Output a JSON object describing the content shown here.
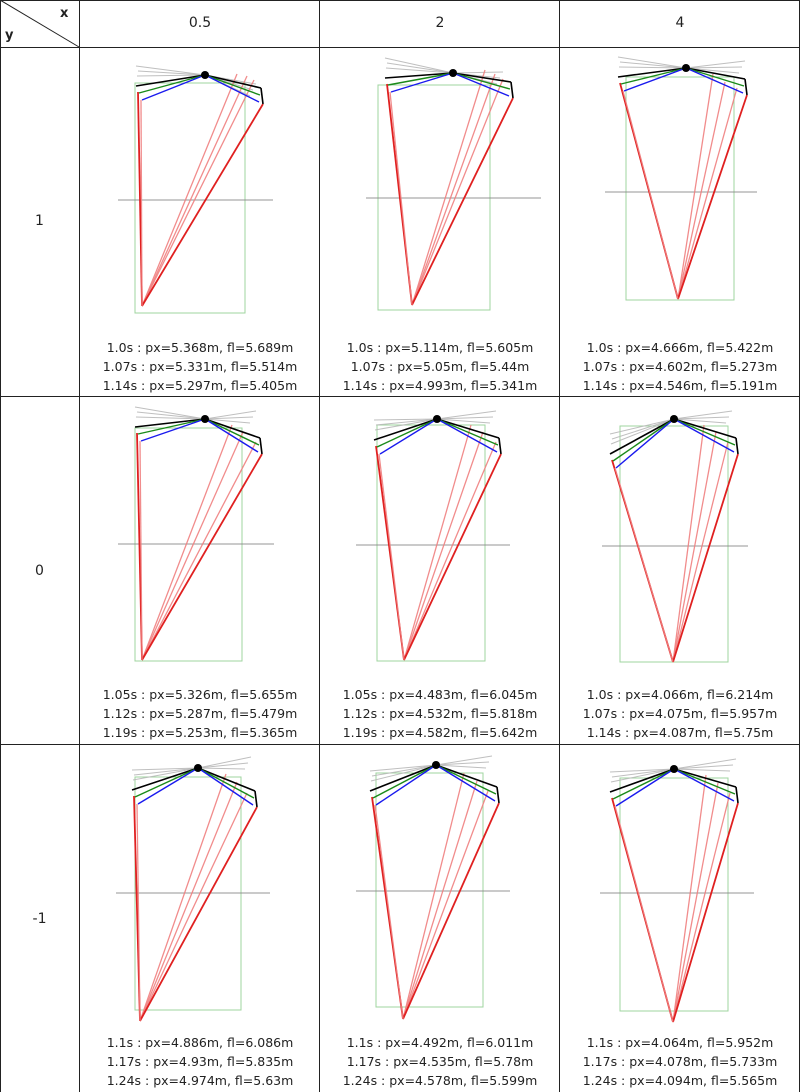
{
  "header": {
    "x_label": "x",
    "y_label": "y"
  },
  "columns": [
    "0.5",
    "2",
    "4"
  ],
  "rows": [
    {
      "label": "1",
      "cells": [
        {
          "lines": [
            "1.0s : px=5.368m, fl=5.689m",
            "1.07s : px=5.331m, fl=5.514m",
            "1.14s : px=5.297m, fl=5.405m"
          ]
        },
        {
          "lines": [
            "1.0s : px=5.114m, fl=5.605m",
            "1.07s : px=5.05m, fl=5.44m",
            "1.14s : px=4.993m, fl=5.341m"
          ]
        },
        {
          "lines": [
            "1.0s : px=4.666m, fl=5.422m",
            "1.07s : px=4.602m, fl=5.273m",
            "1.14s : px=4.546m, fl=5.191m"
          ]
        }
      ]
    },
    {
      "label": "0",
      "cells": [
        {
          "lines": [
            "1.05s : px=5.326m, fl=5.655m",
            "1.12s : px=5.287m, fl=5.479m",
            "1.19s : px=5.253m, fl=5.365m"
          ]
        },
        {
          "lines": [
            "1.05s : px=4.483m, fl=6.045m",
            "1.12s : px=4.532m, fl=5.818m",
            "1.19s : px=4.582m, fl=5.642m"
          ]
        },
        {
          "lines": [
            "1.0s : px=4.066m, fl=6.214m",
            "1.07s : px=4.075m, fl=5.957m",
            "1.14s : px=4.087m, fl=5.75m"
          ]
        }
      ]
    },
    {
      "label": "-1",
      "cells": [
        {
          "lines": [
            "1.1s : px=4.886m, fl=6.086m",
            "1.17s : px=4.93m, fl=5.835m",
            "1.24s : px=4.974m, fl=5.63m"
          ]
        },
        {
          "lines": [
            "1.1s : px=4.492m, fl=6.011m",
            "1.17s : px=4.535m, fl=5.78m",
            "1.24s : px=4.578m, fl=5.599m"
          ]
        },
        {
          "lines": [
            "1.1s : px=4.064m, fl=5.952m",
            "1.17s : px=4.078m, fl=5.733m",
            "1.24s : px=4.094m, fl=5.565m"
          ]
        }
      ]
    }
  ],
  "colors": {
    "grid": "#222222",
    "triangle": "#e02020",
    "triangle_faint": "#f08080",
    "box": "#9fd49f",
    "horizon": "#888888",
    "arm_black": "#000000",
    "arm_green": "#1a8a1a",
    "arm_blue": "#1a1aee",
    "arm_gray": "#b8b8b8"
  }
}
